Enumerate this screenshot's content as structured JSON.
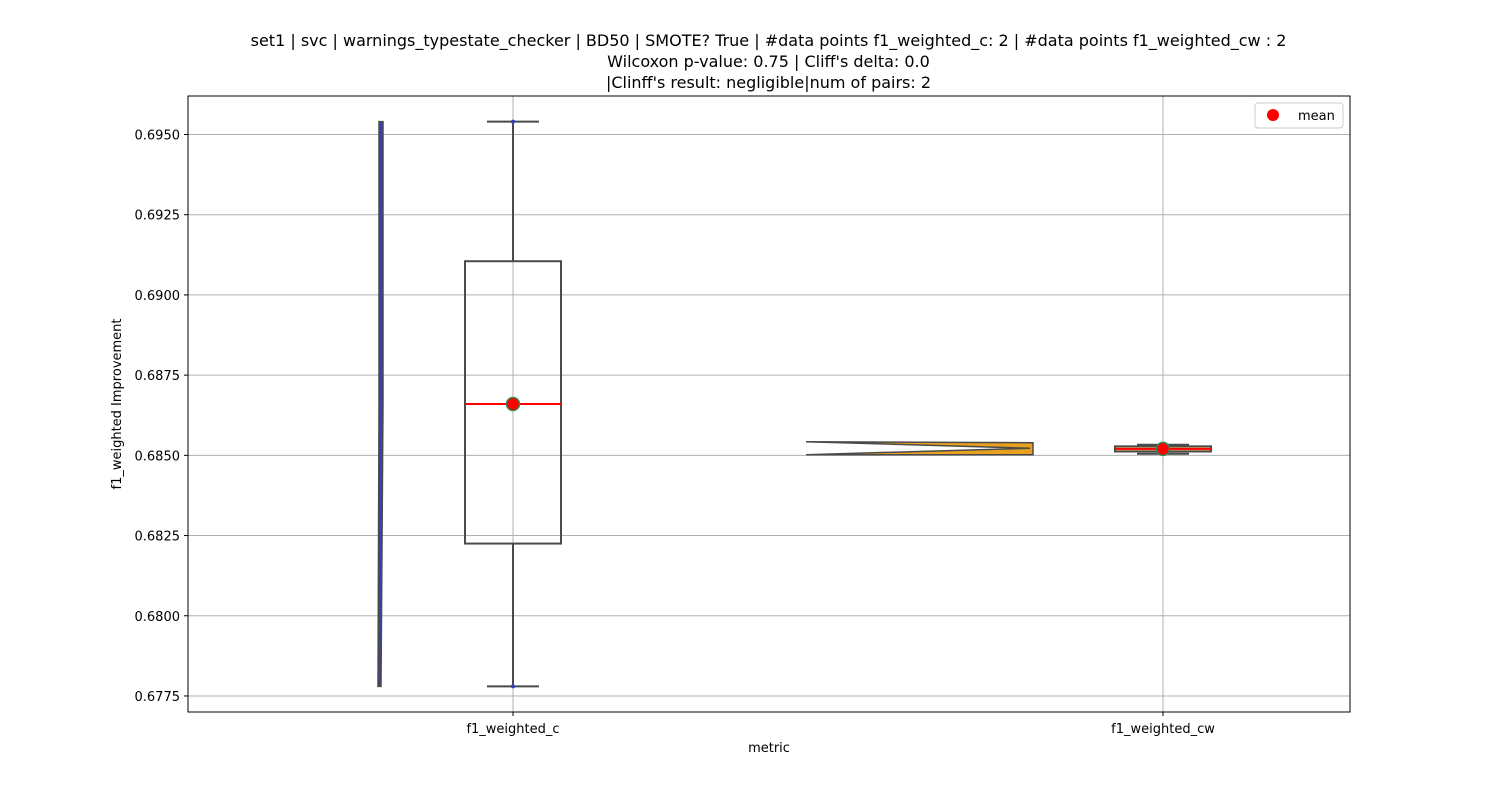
{
  "chart_data": {
    "type": "box",
    "title_lines": [
      "set1 | svc | warnings_typestate_checker | BD50 | SMOTE? True | #data points f1_weighted_c: 2 | #data points f1_weighted_cw : 2",
      "Wilcoxon p-value: 0.75 | Cliff's delta: 0.0",
      "|Clinff's result: negligible|num of pairs: 2"
    ],
    "xlabel": "metric",
    "ylabel": "f1_weighted Improvement",
    "categories": [
      "f1_weighted_c",
      "f1_weighted_cw"
    ],
    "ylim": [
      0.677,
      0.6962
    ],
    "yticks": [
      0.6775,
      0.68,
      0.6825,
      0.685,
      0.6875,
      0.69,
      0.6925,
      0.695
    ],
    "ytick_labels": [
      "0.6775",
      "0.6800",
      "0.6825",
      "0.6850",
      "0.6875",
      "0.6900",
      "0.6925",
      "0.6950"
    ],
    "grid": true,
    "legend": {
      "position": "top-right",
      "entries": [
        {
          "label": "mean",
          "color": "#ff0000"
        }
      ]
    },
    "series": [
      {
        "name": "f1_weighted_c",
        "points": [
          0.6778,
          0.6954
        ],
        "whisker_low": 0.6778,
        "q1": 0.68225,
        "median": 0.6866,
        "q3": 0.69105,
        "whisker_high": 0.6954,
        "mean": 0.6866,
        "violin_color": "#3a3fb5"
      },
      {
        "name": "f1_weighted_cw",
        "points": [
          0.68505,
          0.68533
        ],
        "whisker_low": 0.68505,
        "q1": 0.68512,
        "median": 0.6852,
        "q3": 0.68528,
        "whisker_high": 0.68533,
        "mean": 0.6852,
        "violin_color": "#e8a020"
      }
    ],
    "colors": {
      "box_edge": "#4a4a4a",
      "median_line": "#ff0000",
      "mean_marker": "#ff0000",
      "mean_marker_edge": "#2e8b57",
      "grid": "#b0b0b0"
    }
  }
}
